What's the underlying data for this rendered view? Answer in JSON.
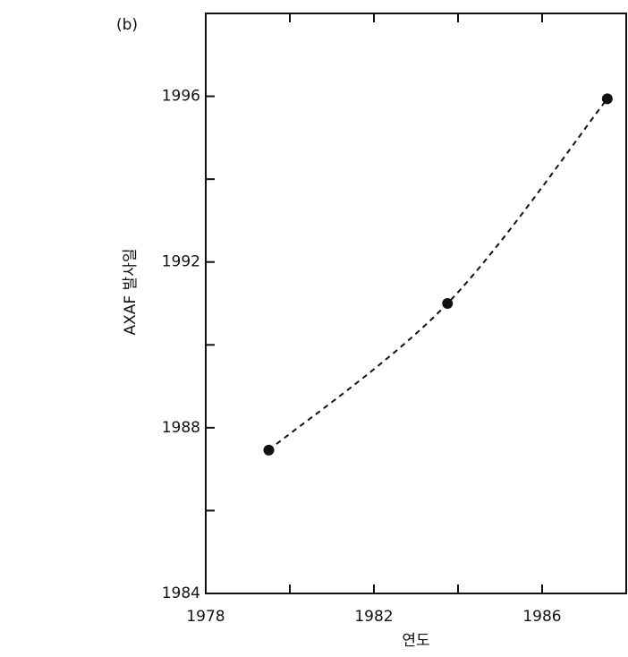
{
  "chart_data": {
    "type": "line",
    "panel_label": "(b)",
    "x_label": "연도",
    "y_label": "AXAF 발사일",
    "x": [
      1979.5,
      1983.75,
      1987.55
    ],
    "series": [
      {
        "values": [
          1987.46,
          1991.0,
          1995.94
        ],
        "color": "#111111"
      }
    ],
    "xlim": [
      1978,
      1988
    ],
    "ylim": [
      1984,
      1998
    ],
    "xticks": [
      1978,
      1982,
      1986
    ],
    "yticks": [
      1984,
      1988,
      1992,
      1996
    ],
    "xminor_ticks": [
      1980,
      1984,
      1988
    ],
    "yminor_ticks": [
      1986,
      1990,
      1994
    ],
    "line_style": "dashed",
    "grid": false
  }
}
